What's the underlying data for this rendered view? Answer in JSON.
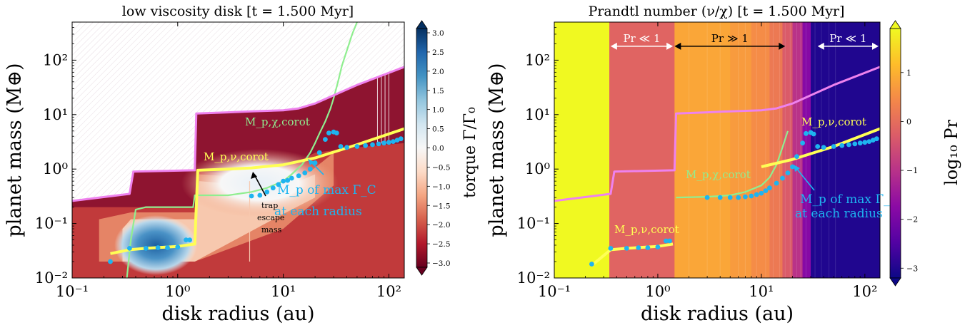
{
  "chart_data": [
    {
      "type": "heatmap",
      "title": "low viscosity disk [t = 1.500 Myr]",
      "xlabel": "disk radius (au)",
      "ylabel": "planet mass (M⊕)",
      "xscale": "log",
      "yscale": "log",
      "xlim": [
        0.1,
        140
      ],
      "ylim": [
        0.01,
        500
      ],
      "x_ticks": [
        {
          "v": 0.1,
          "label": "10⁻¹"
        },
        {
          "v": 1,
          "label": "10⁰"
        },
        {
          "v": 10,
          "label": "10¹"
        },
        {
          "v": 100,
          "label": "10²"
        }
      ],
      "y_ticks": [
        {
          "v": 0.01,
          "label": "10⁻²"
        },
        {
          "v": 0.1,
          "label": "10⁻¹"
        },
        {
          "v": 1,
          "label": "10⁰"
        },
        {
          "v": 10,
          "label": "10¹"
        },
        {
          "v": 100,
          "label": "10²"
        }
      ],
      "colorbar": {
        "label": "torque Γ/Γ₀",
        "min": -3.0,
        "max": 3.0,
        "ticks": [
          "3.0",
          "2.5",
          "2.0",
          "1.5",
          "1.0",
          "0.5",
          "0.0",
          "−0.5",
          "−1.0",
          "−1.5",
          "−2.0",
          "−2.5",
          "−3.0"
        ],
        "colors": [
          "#67001f",
          "#b2182b",
          "#d6604d",
          "#f4a582",
          "#fddbc7",
          "#f7f7f7",
          "#d1e5f0",
          "#92c5de",
          "#4393c3",
          "#2166ac",
          "#053061"
        ]
      },
      "series": [
        {
          "name": "M_p,χ,corot",
          "color": "#90ee90",
          "x": [
            0.33,
            0.36,
            0.4,
            0.5,
            1.0,
            1.4,
            1.45,
            3,
            5,
            7,
            10,
            12,
            15,
            18,
            20,
            22,
            25,
            28,
            30,
            33,
            36,
            40,
            45,
            50
          ],
          "y": [
            0.01,
            0.05,
            0.18,
            0.2,
            0.2,
            0.2,
            0.33,
            0.33,
            0.38,
            0.45,
            0.6,
            0.8,
            1.2,
            2.0,
            3.0,
            4.5,
            7.5,
            13,
            20,
            40,
            80,
            150,
            300,
            500
          ]
        },
        {
          "name": "M_p,ν,corot",
          "color": "#ffff55",
          "x": [
            0.23,
            0.35,
            0.5,
            1.0,
            1.45,
            1.55,
            3,
            5,
            10,
            20,
            50,
            140
          ],
          "y": [
            0.028,
            0.033,
            0.035,
            0.038,
            0.042,
            0.95,
            1.0,
            1.05,
            1.2,
            1.6,
            2.8,
            5.5
          ]
        },
        {
          "name": "upper_boundary",
          "color": "#ee82ee",
          "x": [
            0.1,
            0.35,
            0.38,
            1.45,
            1.5,
            3,
            5,
            10,
            14,
            20,
            50,
            140
          ],
          "y": [
            0.26,
            0.35,
            0.9,
            0.95,
            10.5,
            11,
            11.5,
            12,
            13,
            16,
            35,
            75
          ]
        }
      ],
      "points": {
        "name": "M_p of max Γ_C",
        "color": "#1eb4f0",
        "x": [
          0.23,
          0.35,
          0.5,
          0.65,
          0.8,
          1.0,
          1.2,
          1.3,
          5,
          6,
          7,
          8,
          9,
          10,
          11,
          12,
          14,
          16,
          18,
          20,
          22,
          25,
          27,
          30,
          32,
          35,
          40,
          50,
          60,
          70,
          80,
          90,
          100,
          110,
          120,
          130
        ],
        "y": [
          0.02,
          0.035,
          0.035,
          0.036,
          0.036,
          0.037,
          0.05,
          0.05,
          0.32,
          0.33,
          0.38,
          0.45,
          0.52,
          0.6,
          0.62,
          0.68,
          0.75,
          0.85,
          1.0,
          1.3,
          2.0,
          3.5,
          4.6,
          4.8,
          4.6,
          2.6,
          2.5,
          2.6,
          2.7,
          2.8,
          2.9,
          3.0,
          3.1,
          3.2,
          3.4,
          3.6
        ]
      },
      "annotations": [
        {
          "text": "M_p,χ,corot",
          "color": "#90ee90"
        },
        {
          "text": "M_p,ν,corot",
          "color": "#ffff55"
        },
        {
          "text": "trap\nescape\nmass",
          "color": "#000000"
        },
        {
          "text": "M_p of max Γ_C\nat each radius",
          "color": "#1eb4f0"
        }
      ]
    },
    {
      "type": "heatmap",
      "title": "Prandtl number (ν/χ) [t = 1.500 Myr]",
      "xlabel": "disk radius (au)",
      "ylabel": "planet mass (M⊕)",
      "xscale": "log",
      "yscale": "log",
      "xlim": [
        0.1,
        140
      ],
      "ylim": [
        0.01,
        500
      ],
      "x_ticks": [
        {
          "v": 0.1,
          "label": "10⁻¹"
        },
        {
          "v": 1,
          "label": "10⁰"
        },
        {
          "v": 10,
          "label": "10¹"
        },
        {
          "v": 100,
          "label": "10²"
        }
      ],
      "y_ticks": [
        {
          "v": 0.01,
          "label": "10⁻²"
        },
        {
          "v": 0.1,
          "label": "10⁻¹"
        },
        {
          "v": 1,
          "label": "10⁰"
        },
        {
          "v": 10,
          "label": "10¹"
        },
        {
          "v": 100,
          "label": "10²"
        }
      ],
      "colorbar": {
        "label": "log₁₀ Pr",
        "min": -3.2,
        "max": 1.9,
        "ticks": [
          {
            "v": 1,
            "label": "1"
          },
          {
            "v": 0,
            "label": "0"
          },
          {
            "v": -1,
            "label": "−1"
          },
          {
            "v": -2,
            "label": "−2"
          },
          {
            "v": -3,
            "label": "−3"
          }
        ],
        "colors": [
          "#0d0887",
          "#5302a3",
          "#8b0aa5",
          "#b83289",
          "#db5c68",
          "#f48849",
          "#febd2a",
          "#f0f921"
        ]
      },
      "bands": [
        {
          "x0": 0.1,
          "x1": 0.34,
          "logPr": 1.9
        },
        {
          "x0": 0.34,
          "x1": 1.45,
          "logPr": -0.15
        },
        {
          "x0": 1.45,
          "x1": 5,
          "logPr": 0.85
        },
        {
          "x0": 5,
          "x1": 8,
          "logPr": 0.7
        },
        {
          "x0": 8,
          "x1": 12,
          "logPr": 0.5
        },
        {
          "x0": 12,
          "x1": 16,
          "logPr": 0.2
        },
        {
          "x0": 16,
          "x1": 20,
          "logPr": -0.3
        },
        {
          "x0": 20,
          "x1": 25,
          "logPr": -1.0
        },
        {
          "x0": 25,
          "x1": 30,
          "logPr": -1.8
        },
        {
          "x0": 30,
          "x1": 140,
          "logPr": -3.0
        }
      ],
      "series": [
        {
          "name": "M_p,χ,corot",
          "color": "#90ee90",
          "x": [
            1.5,
            3,
            5,
            7,
            10,
            12,
            14,
            16,
            18
          ],
          "y": [
            0.3,
            0.31,
            0.33,
            0.38,
            0.5,
            0.7,
            1.2,
            2.5,
            5.0
          ]
        },
        {
          "name": "M_p,ν,corot",
          "color": "#ffff55",
          "x": [
            0.23,
            0.35,
            0.5,
            1.0,
            1.4
          ],
          "y": [
            0.017,
            0.033,
            0.035,
            0.038,
            0.042
          ]
        },
        {
          "name": "M_p,ν,corot (outer)",
          "color": "#ffff55",
          "x": [
            10,
            20,
            50,
            140
          ],
          "y": [
            1.1,
            1.5,
            2.6,
            5.5
          ]
        },
        {
          "name": "upper_boundary",
          "color": "#ee82ee",
          "x": [
            0.1,
            0.35,
            0.38,
            1.45,
            1.5,
            3,
            5,
            10,
            14,
            20,
            50,
            140
          ],
          "y": [
            0.26,
            0.35,
            0.9,
            0.95,
            10.5,
            11,
            11.5,
            12,
            13,
            16,
            35,
            75
          ]
        }
      ],
      "points": {
        "name": "M_p of max Γ_C",
        "color": "#1eb4f0",
        "x": [
          0.23,
          0.35,
          0.5,
          0.65,
          0.8,
          1.0,
          1.2,
          1.3,
          3,
          4,
          5,
          6,
          7,
          8,
          9,
          10,
          11,
          12,
          14,
          16,
          18,
          20,
          22,
          25,
          27,
          30,
          32,
          35,
          40,
          50,
          60,
          70,
          80,
          90,
          100,
          110,
          120,
          130
        ],
        "y": [
          0.018,
          0.035,
          0.035,
          0.036,
          0.036,
          0.037,
          0.048,
          0.048,
          0.3,
          0.3,
          0.3,
          0.3,
          0.31,
          0.32,
          0.34,
          0.36,
          0.4,
          0.45,
          0.55,
          0.68,
          0.85,
          1.1,
          1.7,
          3.0,
          4.5,
          4.7,
          4.4,
          2.6,
          2.5,
          2.6,
          2.7,
          2.8,
          2.9,
          3.0,
          3.1,
          3.2,
          3.4,
          3.6
        ]
      },
      "regions": [
        {
          "text": "Pr ≪ 1",
          "x0": 0.35,
          "x1": 1.4,
          "arrow_color": "#ffffff"
        },
        {
          "text": "Pr ≫ 1",
          "x0": 1.45,
          "x1": 17,
          "arrow_color": "#000000"
        },
        {
          "text": "Pr ≪ 1",
          "x0": 35,
          "x1": 140,
          "arrow_color": "#ffffff"
        }
      ],
      "annotations": [
        {
          "text": "M_p,ν,corot",
          "color": "#ffff55"
        },
        {
          "text": "M_p,χ,corot",
          "color": "#90ee90"
        },
        {
          "text": "M_p,ν,corot",
          "color": "#ffff55"
        },
        {
          "text": "M_p of max Γ_C\nat each radius",
          "color": "#1eb4f0"
        }
      ]
    }
  ]
}
